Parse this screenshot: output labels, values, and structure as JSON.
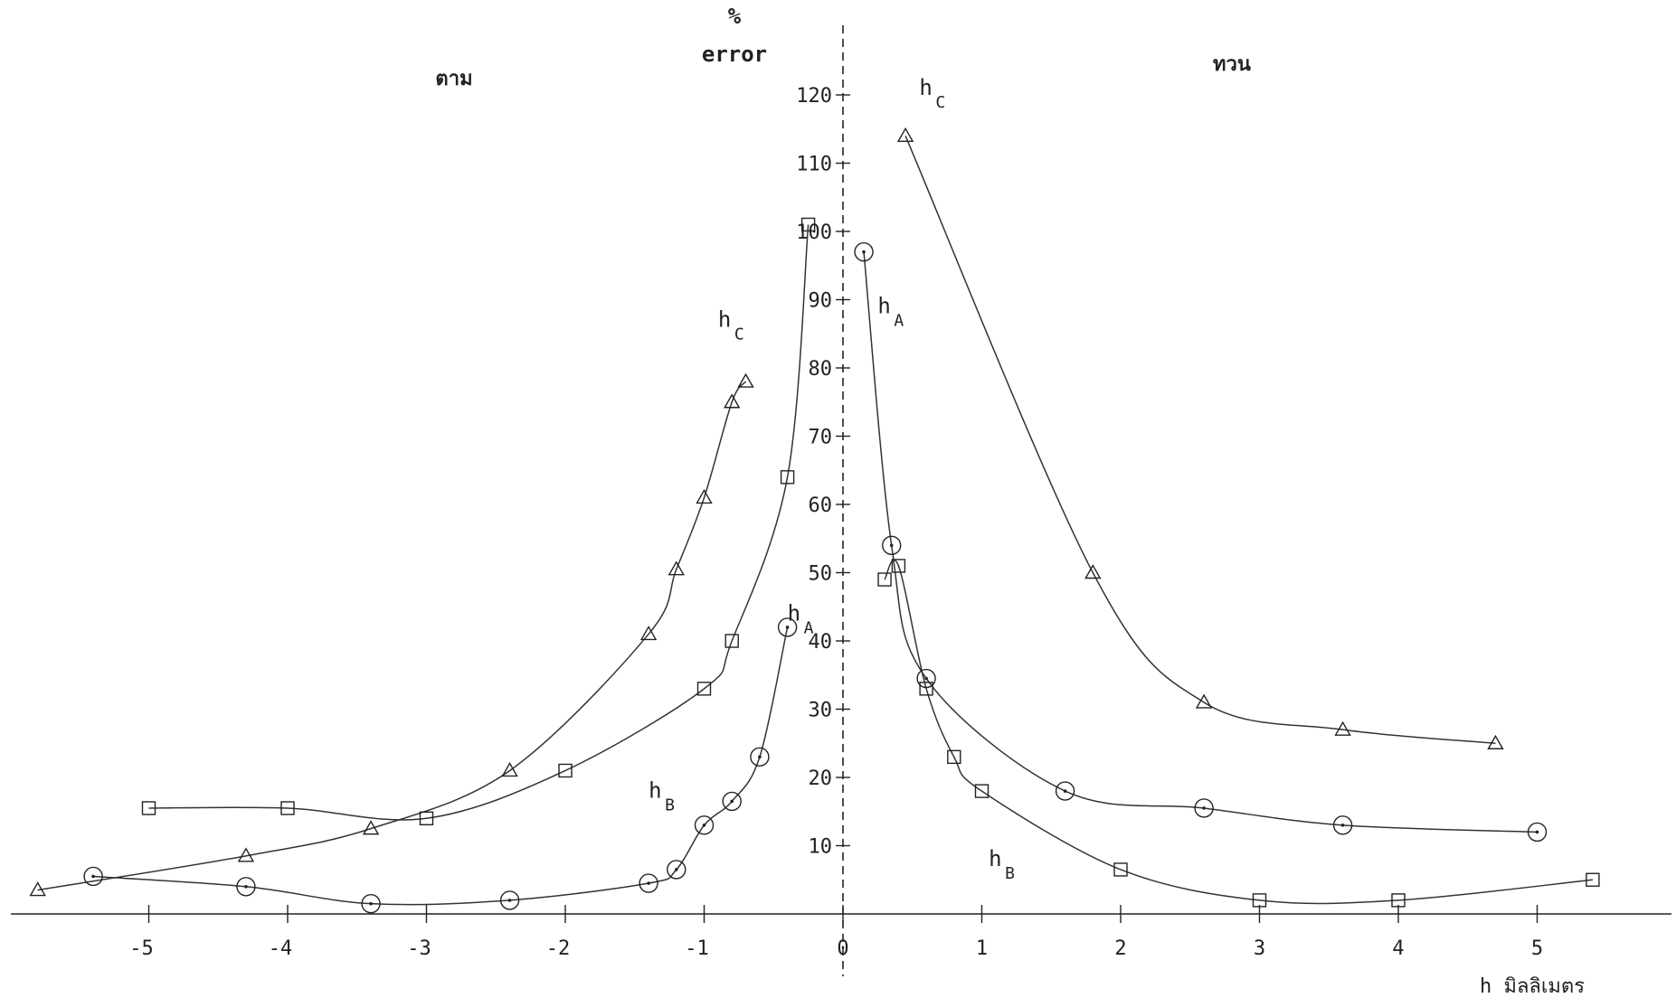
{
  "chart_data": {
    "type": "scatter",
    "title": "",
    "ylabel_top": "%",
    "ylabel": "error",
    "xlabel": "h มิลลิเมตร",
    "left_label": "ตาม",
    "right_label": "ทวน",
    "xlim": [
      -6,
      6
    ],
    "ylim": [
      0,
      125
    ],
    "x_ticks": [
      "-5",
      "-4",
      "-3",
      "-2",
      "-1",
      "0",
      "1",
      "2",
      "3",
      "4",
      "5"
    ],
    "y_ticks": [
      "10",
      "20",
      "30",
      "40",
      "50",
      "60",
      "70",
      "80",
      "90",
      "100",
      "110",
      "120"
    ],
    "curve_labels": [
      {
        "main": "h",
        "sub": "C",
        "x": -0.9,
        "y": 86
      },
      {
        "main": "h",
        "sub": "A",
        "x": -0.4,
        "y": 43
      },
      {
        "main": "h",
        "sub": "B",
        "x": -1.4,
        "y": 17
      },
      {
        "main": "h",
        "sub": "C",
        "x": 0.55,
        "y": 120
      },
      {
        "main": "h",
        "sub": "A",
        "x": 0.25,
        "y": 88
      },
      {
        "main": "h",
        "sub": "B",
        "x": 1.05,
        "y": 7
      }
    ],
    "series": [
      {
        "name": "h_C",
        "marker": "triangle",
        "points": [
          [
            -5.8,
            3.5
          ],
          [
            -4.3,
            8.5
          ],
          [
            -3.4,
            12.5
          ],
          [
            -2.4,
            21
          ],
          [
            -1.4,
            41
          ],
          [
            -1.2,
            50.5
          ],
          [
            -1.0,
            61
          ],
          [
            -0.8,
            75
          ],
          [
            -0.7,
            78
          ],
          [
            0.45,
            114
          ],
          [
            1.8,
            50
          ],
          [
            2.6,
            31
          ],
          [
            3.6,
            27
          ],
          [
            4.7,
            25
          ]
        ]
      },
      {
        "name": "h_B",
        "marker": "square",
        "points": [
          [
            -5.0,
            15.5
          ],
          [
            -4.0,
            15.5
          ],
          [
            -3.0,
            14
          ],
          [
            -2.0,
            21
          ],
          [
            -1.0,
            33
          ],
          [
            -0.8,
            40
          ],
          [
            -0.4,
            64
          ],
          [
            -0.25,
            101
          ],
          [
            0.3,
            49
          ],
          [
            0.4,
            51
          ],
          [
            0.6,
            33
          ],
          [
            0.8,
            23
          ],
          [
            1.0,
            18
          ],
          [
            2.0,
            6.5
          ],
          [
            3.0,
            2
          ],
          [
            4.0,
            2
          ],
          [
            5.4,
            5
          ]
        ]
      },
      {
        "name": "h_A",
        "marker": "circle",
        "points": [
          [
            -5.4,
            5.5
          ],
          [
            -4.3,
            4
          ],
          [
            -3.4,
            1.5
          ],
          [
            -2.4,
            2
          ],
          [
            -1.4,
            4.5
          ],
          [
            -1.2,
            6.5
          ],
          [
            -1.0,
            13
          ],
          [
            -0.8,
            16.5
          ],
          [
            -0.6,
            23
          ],
          [
            -0.4,
            42
          ],
          [
            0.15,
            97
          ],
          [
            0.35,
            54
          ],
          [
            0.6,
            34.5
          ],
          [
            1.6,
            18
          ],
          [
            2.6,
            15.5
          ],
          [
            3.6,
            13
          ],
          [
            5.0,
            12
          ]
        ]
      }
    ]
  }
}
